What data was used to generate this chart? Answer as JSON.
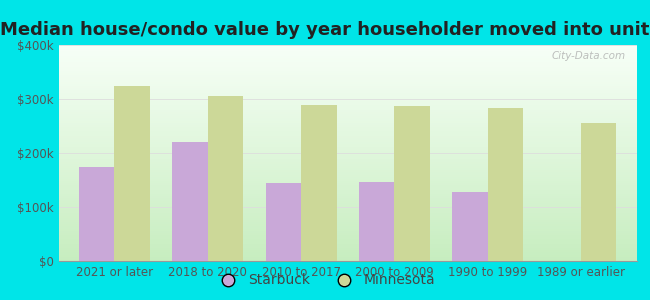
{
  "title": "Median house/condo value by year householder moved into unit",
  "categories": [
    "2021 or later",
    "2018 to 2020",
    "2010 to 2017",
    "2000 to 2009",
    "1990 to 1999",
    "1989 or earlier"
  ],
  "starbuck_values": [
    175000,
    220000,
    145000,
    147000,
    128000,
    0
  ],
  "minnesota_values": [
    325000,
    305000,
    288000,
    287000,
    284000,
    255000
  ],
  "starbuck_color": "#c9a8d8",
  "minnesota_color": "#ccd898",
  "background_outer": "#00e5e8",
  "background_inner_top": "#f5fff5",
  "background_inner_bottom": "#c8eec0",
  "ylim": [
    0,
    400000
  ],
  "yticks": [
    0,
    100000,
    200000,
    300000,
    400000
  ],
  "ytick_labels": [
    "$0",
    "$100k",
    "$200k",
    "$300k",
    "$400k"
  ],
  "bar_width": 0.38,
  "legend_labels": [
    "Starbuck",
    "Minnesota"
  ],
  "watermark": "City-Data.com",
  "title_fontsize": 13,
  "tick_fontsize": 8.5,
  "legend_fontsize": 10,
  "grid_color": "#dddddd"
}
